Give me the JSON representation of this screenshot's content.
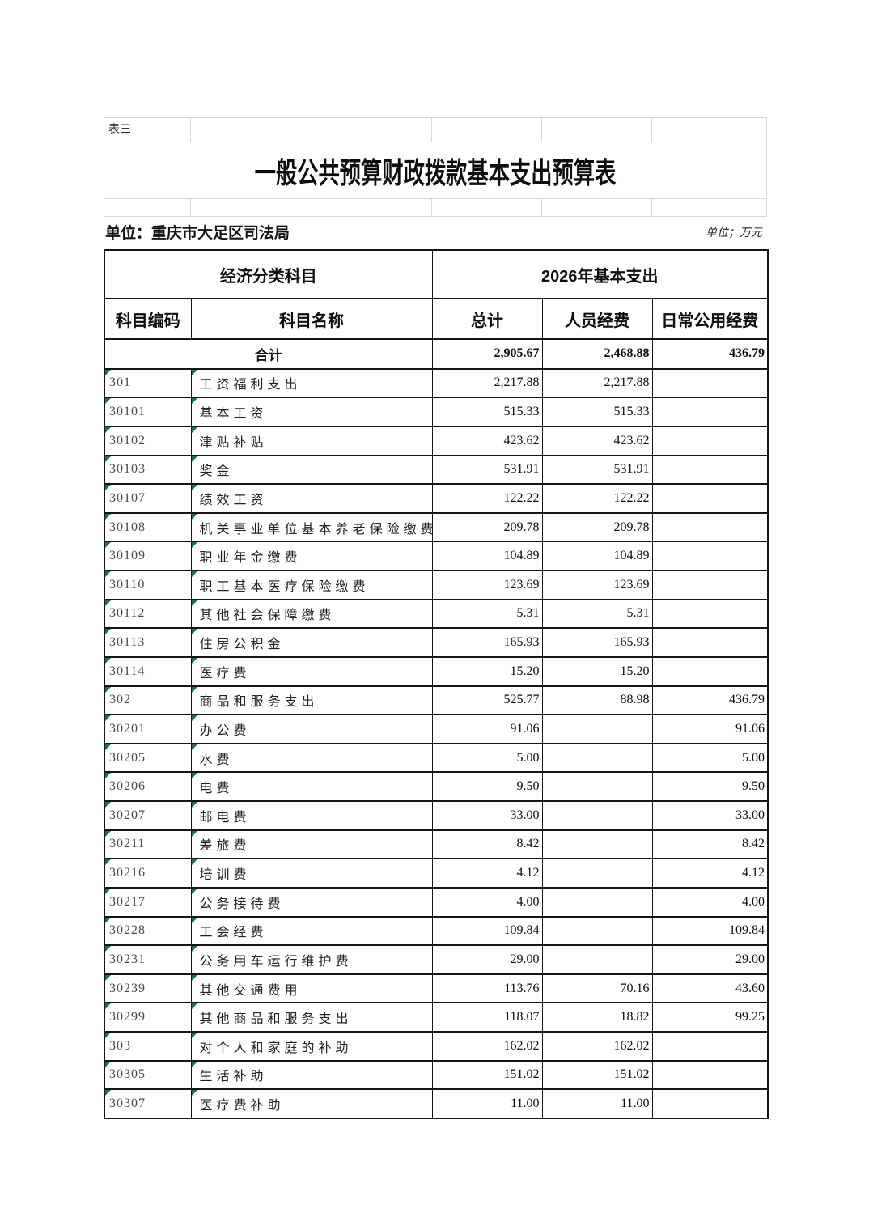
{
  "page": {
    "sheet_label": "表三",
    "title": "一般公共预算财政拨款基本支出预算表",
    "unit_name": "单位：重庆市大足区司法局",
    "unit_measure": "单位；万元"
  },
  "table": {
    "group_headers": {
      "left": "经济分类科目",
      "right": "2026年基本支出"
    },
    "columns": [
      "科目编码",
      "科目名称",
      "总计",
      "人员经费",
      "日常公用经费"
    ],
    "total_row": {
      "label": "合计",
      "total": "2,905.67",
      "personnel": "2,468.88",
      "daily": "436.79"
    },
    "rows": [
      {
        "code": "301",
        "name": "工资福利支出",
        "total": "2,217.88",
        "personnel": "2,217.88",
        "daily": ""
      },
      {
        "code": "30101",
        "name": "基本工资",
        "total": "515.33",
        "personnel": "515.33",
        "daily": ""
      },
      {
        "code": "30102",
        "name": "津贴补贴",
        "total": "423.62",
        "personnel": "423.62",
        "daily": ""
      },
      {
        "code": "30103",
        "name": "奖金",
        "total": "531.91",
        "personnel": "531.91",
        "daily": ""
      },
      {
        "code": "30107",
        "name": "绩效工资",
        "total": "122.22",
        "personnel": "122.22",
        "daily": ""
      },
      {
        "code": "30108",
        "name": "机关事业单位基本养老保险缴费",
        "total": "209.78",
        "personnel": "209.78",
        "daily": ""
      },
      {
        "code": "30109",
        "name": "职业年金缴费",
        "total": "104.89",
        "personnel": "104.89",
        "daily": ""
      },
      {
        "code": "30110",
        "name": "职工基本医疗保险缴费",
        "total": "123.69",
        "personnel": "123.69",
        "daily": ""
      },
      {
        "code": "30112",
        "name": "其他社会保障缴费",
        "total": "5.31",
        "personnel": "5.31",
        "daily": ""
      },
      {
        "code": "30113",
        "name": "住房公积金",
        "total": "165.93",
        "personnel": "165.93",
        "daily": ""
      },
      {
        "code": "30114",
        "name": "医疗费",
        "total": "15.20",
        "personnel": "15.20",
        "daily": ""
      },
      {
        "code": "302",
        "name": "商品和服务支出",
        "total": "525.77",
        "personnel": "88.98",
        "daily": "436.79"
      },
      {
        "code": "30201",
        "name": "办公费",
        "total": "91.06",
        "personnel": "",
        "daily": "91.06"
      },
      {
        "code": "30205",
        "name": "水费",
        "total": "5.00",
        "personnel": "",
        "daily": "5.00"
      },
      {
        "code": "30206",
        "name": "电费",
        "total": "9.50",
        "personnel": "",
        "daily": "9.50"
      },
      {
        "code": "30207",
        "name": "邮电费",
        "total": "33.00",
        "personnel": "",
        "daily": "33.00"
      },
      {
        "code": "30211",
        "name": "差旅费",
        "total": "8.42",
        "personnel": "",
        "daily": "8.42"
      },
      {
        "code": "30216",
        "name": "培训费",
        "total": "4.12",
        "personnel": "",
        "daily": "4.12"
      },
      {
        "code": "30217",
        "name": "公务接待费",
        "total": "4.00",
        "personnel": "",
        "daily": "4.00"
      },
      {
        "code": "30228",
        "name": "工会经费",
        "total": "109.84",
        "personnel": "",
        "daily": "109.84"
      },
      {
        "code": "30231",
        "name": "公务用车运行维护费",
        "total": "29.00",
        "personnel": "",
        "daily": "29.00"
      },
      {
        "code": "30239",
        "name": "其他交通费用",
        "total": "113.76",
        "personnel": "70.16",
        "daily": "43.60"
      },
      {
        "code": "30299",
        "name": "其他商品和服务支出",
        "total": "118.07",
        "personnel": "18.82",
        "daily": "99.25"
      },
      {
        "code": "303",
        "name": "对个人和家庭的补助",
        "total": "162.02",
        "personnel": "162.02",
        "daily": ""
      },
      {
        "code": "30305",
        "name": "生活补助",
        "total": "151.02",
        "personnel": "151.02",
        "daily": ""
      },
      {
        "code": "30307",
        "name": "医疗费补助",
        "total": "11.00",
        "personnel": "11.00",
        "daily": ""
      }
    ]
  },
  "colors": {
    "table_border": "#151515",
    "faint_grid": "#d8d8d8",
    "marker_green": "#1e7145"
  }
}
